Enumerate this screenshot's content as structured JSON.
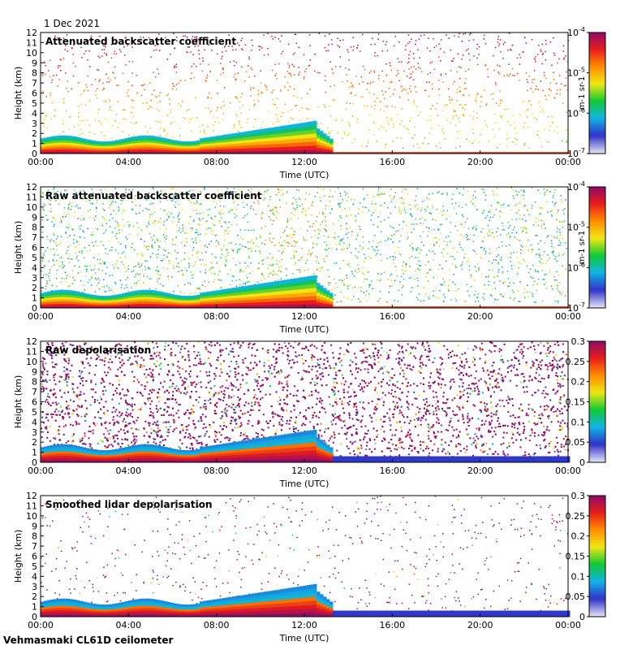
{
  "date": "1 Dec 2021",
  "footer": "Vehmasmaki CL61D ceilometer",
  "colors": {
    "cmap": [
      "#e0e0f4",
      "#3232c8",
      "#10b4e6",
      "#12c832",
      "#f0e614",
      "#ff8c00",
      "#e61c1c",
      "#8b0a6e"
    ],
    "background": "#ffffff",
    "frame": "#000000"
  },
  "chart_data": [
    {
      "type": "heatmap",
      "title": "Attenuated backscatter coefficient",
      "xlabel": "Time (UTC)",
      "ylabel": "Height (km)",
      "xticks": [
        "00:00",
        "04:00",
        "08:00",
        "12:00",
        "16:00",
        "20:00",
        "00:00"
      ],
      "yticks": [
        "0",
        "1",
        "2",
        "3",
        "4",
        "5",
        "6",
        "7",
        "8",
        "9",
        "10",
        "11",
        "12"
      ],
      "ylim": [
        0,
        12
      ],
      "colorbar": {
        "scale": "log",
        "range": [
          1e-07,
          0.0001
        ],
        "ticks": [
          "10-7",
          "10-6",
          "10-5",
          "10-4"
        ],
        "units": "m-1 sr-1"
      },
      "grid": false
    },
    {
      "type": "heatmap",
      "title": "Raw attenuated backscatter coefficient",
      "xlabel": "Time (UTC)",
      "ylabel": "Height (km)",
      "xticks": [
        "00:00",
        "04:00",
        "08:00",
        "12:00",
        "16:00",
        "20:00",
        "00:00"
      ],
      "yticks": [
        "0",
        "1",
        "2",
        "3",
        "4",
        "5",
        "6",
        "7",
        "8",
        "9",
        "10",
        "11",
        "12"
      ],
      "ylim": [
        0,
        12
      ],
      "colorbar": {
        "scale": "log",
        "range": [
          1e-07,
          0.0001
        ],
        "ticks": [
          "10-7",
          "10-6",
          "10-5",
          "10-4"
        ],
        "units": "m-1 sr-1"
      },
      "grid": false
    },
    {
      "type": "heatmap",
      "title": "Raw depolarisation",
      "xlabel": "Time (UTC)",
      "ylabel": "Height (km)",
      "xticks": [
        "00:00",
        "04:00",
        "08:00",
        "12:00",
        "16:00",
        "20:00",
        "00:00"
      ],
      "yticks": [
        "0",
        "1",
        "2",
        "3",
        "4",
        "5",
        "6",
        "7",
        "8",
        "9",
        "10",
        "11",
        "12"
      ],
      "ylim": [
        0,
        12
      ],
      "colorbar": {
        "scale": "linear",
        "range": [
          0,
          0.3
        ],
        "ticks": [
          "0",
          "0.05",
          "0.1",
          "0.15",
          "0.2",
          "0.25",
          "0.3"
        ],
        "units": ""
      },
      "grid": false
    },
    {
      "type": "heatmap",
      "title": "Smoothed lidar depolarisation",
      "xlabel": "Time (UTC)",
      "ylabel": "Height (km)",
      "xticks": [
        "00:00",
        "04:00",
        "08:00",
        "12:00",
        "16:00",
        "20:00",
        "00:00"
      ],
      "yticks": [
        "0",
        "1",
        "2",
        "3",
        "4",
        "5",
        "6",
        "7",
        "8",
        "9",
        "10",
        "11",
        "12"
      ],
      "ylim": [
        0,
        12
      ],
      "colorbar": {
        "scale": "linear",
        "range": [
          0,
          0.3
        ],
        "ticks": [
          "0",
          "0.05",
          "0.1",
          "0.15",
          "0.2",
          "0.25",
          "0.3"
        ],
        "units": ""
      },
      "grid": false
    }
  ]
}
